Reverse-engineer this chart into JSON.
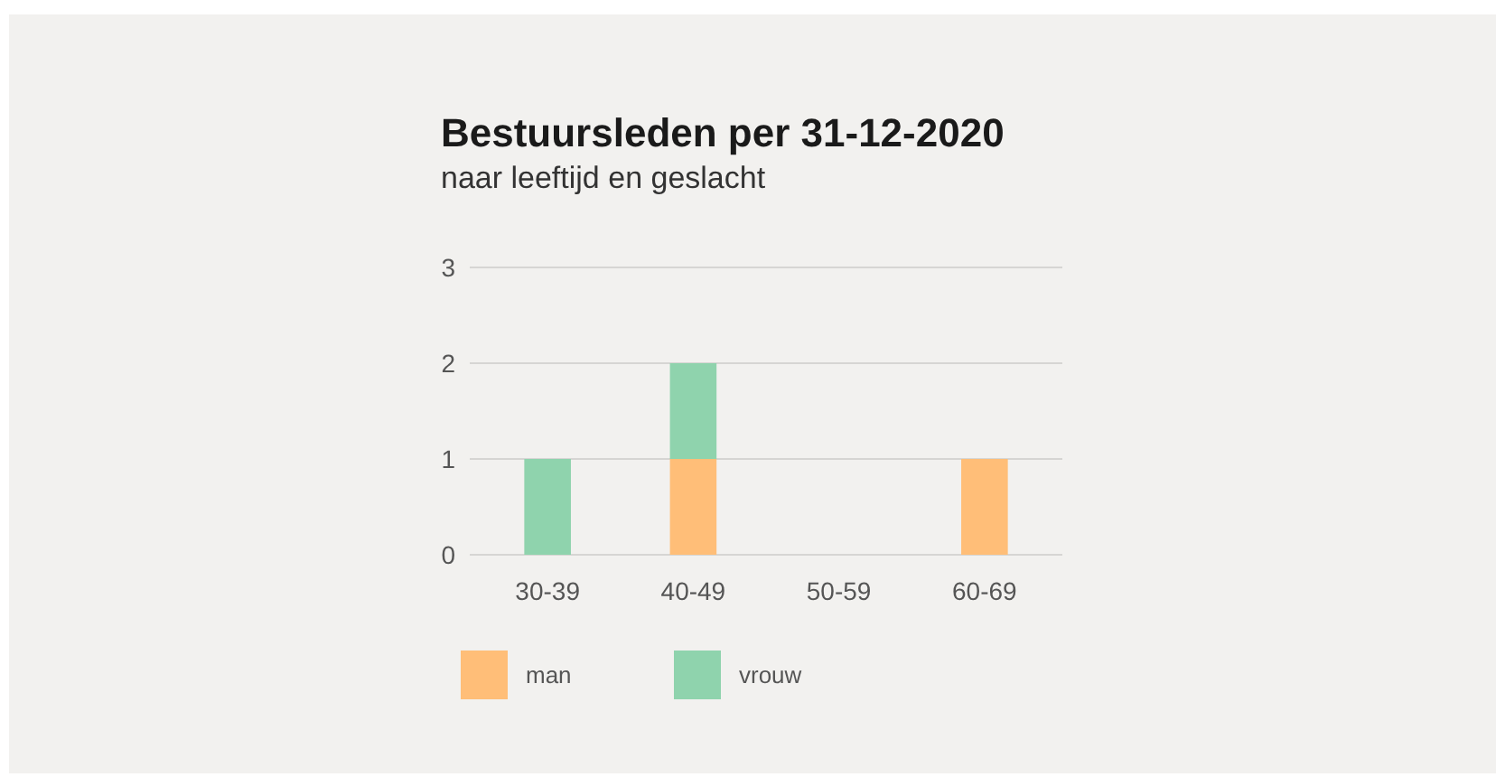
{
  "chart_data": {
    "type": "bar",
    "title": "Bestuursleden per 31-12-2020",
    "subtitle": "naar leeftijd en geslacht",
    "categories": [
      "30-39",
      "40-49",
      "50-59",
      "60-69"
    ],
    "stacked": true,
    "series": [
      {
        "name": "man",
        "color": "#ffbe78",
        "values": [
          0,
          1,
          0,
          1
        ]
      },
      {
        "name": "vrouw",
        "color": "#8fd3ad",
        "values": [
          1,
          1,
          0,
          0
        ]
      }
    ],
    "ylim": [
      0,
      3
    ],
    "yticks": [
      0,
      1,
      2,
      3
    ],
    "grid": "y",
    "legend": "bottom"
  }
}
